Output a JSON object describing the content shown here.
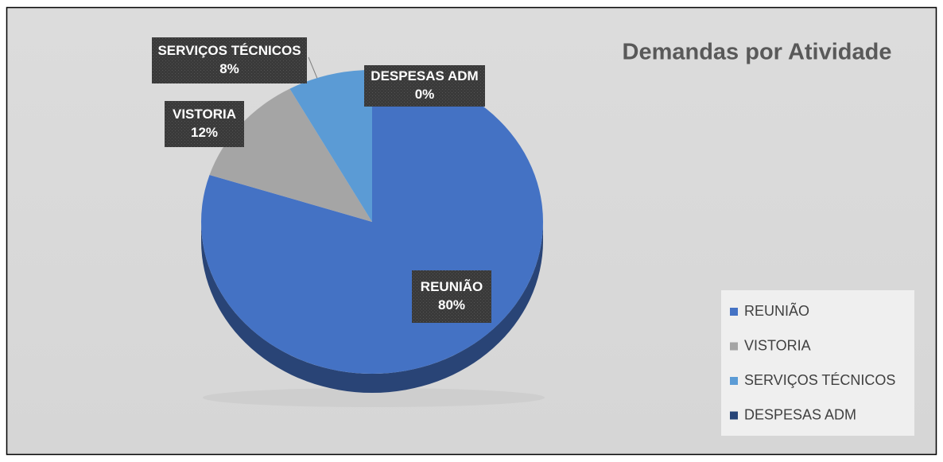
{
  "chart_data": {
    "type": "pie",
    "title": "Demandas por Atividade",
    "categories": [
      "REUNIÃO",
      "VISTORIA",
      "SERVIÇOS TÉCNICOS",
      "DESPESAS ADM"
    ],
    "values": [
      80,
      12,
      8,
      0
    ],
    "value_labels": [
      "80%",
      "12%",
      "8%",
      "0%"
    ],
    "colors": [
      "#4472c4",
      "#a5a5a5",
      "#5b9bd5",
      "#264478"
    ],
    "legend": "right"
  }
}
